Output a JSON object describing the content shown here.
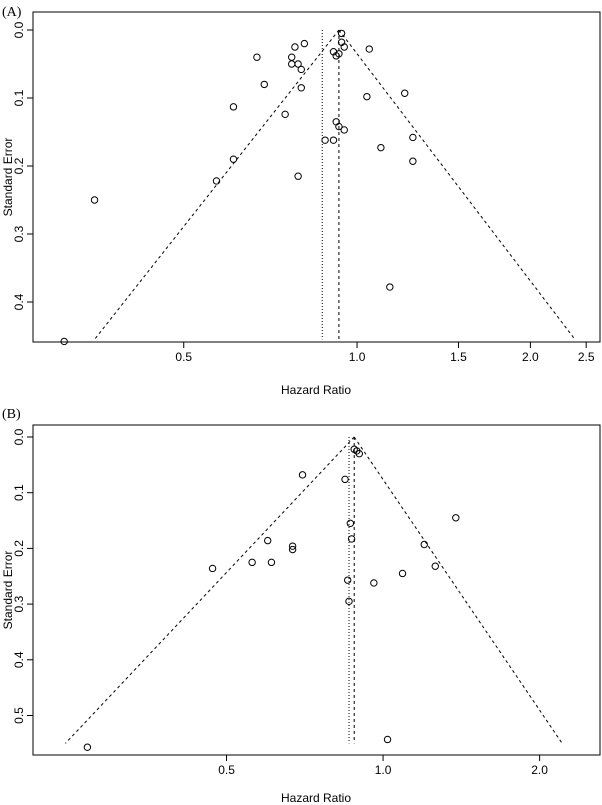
{
  "chart_data": [
    {
      "type": "scatter",
      "panel_label": "(A)",
      "xlabel": "Hazard Ratio",
      "ylabel": "Standard Error",
      "x_ticks": [
        "0.5",
        "1.0",
        "1.5",
        "2.0",
        "2.5"
      ],
      "y_ticks": [
        "0.0",
        "0.1",
        "0.2",
        "0.3",
        "0.4"
      ],
      "ylim": [
        0,
        0.46
      ],
      "pooled_x": 0.93,
      "dotted_x": 0.87,
      "funnel_base_se": 0.455,
      "points": [
        {
          "x": 0.31,
          "y": 0.458
        },
        {
          "x": 0.35,
          "y": 0.25
        },
        {
          "x": 0.57,
          "y": 0.222
        },
        {
          "x": 0.61,
          "y": 0.19
        },
        {
          "x": 0.61,
          "y": 0.113
        },
        {
          "x": 0.67,
          "y": 0.04
        },
        {
          "x": 0.69,
          "y": 0.08
        },
        {
          "x": 0.75,
          "y": 0.124
        },
        {
          "x": 0.77,
          "y": 0.04
        },
        {
          "x": 0.77,
          "y": 0.05
        },
        {
          "x": 0.78,
          "y": 0.025
        },
        {
          "x": 0.79,
          "y": 0.05
        },
        {
          "x": 0.8,
          "y": 0.058
        },
        {
          "x": 0.8,
          "y": 0.085
        },
        {
          "x": 0.79,
          "y": 0.215
        },
        {
          "x": 0.81,
          "y": 0.02
        },
        {
          "x": 0.88,
          "y": 0.162
        },
        {
          "x": 0.91,
          "y": 0.032
        },
        {
          "x": 0.92,
          "y": 0.038
        },
        {
          "x": 0.93,
          "y": 0.035
        },
        {
          "x": 0.94,
          "y": 0.005
        },
        {
          "x": 0.94,
          "y": 0.018
        },
        {
          "x": 0.95,
          "y": 0.025
        },
        {
          "x": 0.92,
          "y": 0.135
        },
        {
          "x": 0.93,
          "y": 0.142
        },
        {
          "x": 0.95,
          "y": 0.147
        },
        {
          "x": 0.91,
          "y": 0.162
        },
        {
          "x": 1.05,
          "y": 0.028
        },
        {
          "x": 1.04,
          "y": 0.098
        },
        {
          "x": 1.1,
          "y": 0.173
        },
        {
          "x": 1.14,
          "y": 0.378
        },
        {
          "x": 1.21,
          "y": 0.093
        },
        {
          "x": 1.25,
          "y": 0.158
        },
        {
          "x": 1.25,
          "y": 0.193
        }
      ]
    },
    {
      "type": "scatter",
      "panel_label": "(B)",
      "xlabel": "Hazard Ratio",
      "ylabel": "Standard Error",
      "x_ticks": [
        "0.5",
        "1.0",
        "2.0"
      ],
      "y_ticks": [
        "0.0",
        "0.1",
        "0.2",
        "0.3",
        "0.4",
        "0.5"
      ],
      "ylim": [
        0,
        0.56
      ],
      "pooled_x": 0.88,
      "dotted_x": 0.86,
      "funnel_base_se": 0.55,
      "points": [
        {
          "x": 0.27,
          "y": 0.557
        },
        {
          "x": 0.47,
          "y": 0.236
        },
        {
          "x": 0.56,
          "y": 0.225
        },
        {
          "x": 0.6,
          "y": 0.186
        },
        {
          "x": 0.61,
          "y": 0.225
        },
        {
          "x": 0.67,
          "y": 0.202
        },
        {
          "x": 0.67,
          "y": 0.196
        },
        {
          "x": 0.7,
          "y": 0.068
        },
        {
          "x": 0.845,
          "y": 0.076
        },
        {
          "x": 0.855,
          "y": 0.257
        },
        {
          "x": 0.86,
          "y": 0.295
        },
        {
          "x": 0.865,
          "y": 0.155
        },
        {
          "x": 0.87,
          "y": 0.183
        },
        {
          "x": 0.88,
          "y": 0.022
        },
        {
          "x": 0.89,
          "y": 0.025
        },
        {
          "x": 0.9,
          "y": 0.03
        },
        {
          "x": 0.96,
          "y": 0.262
        },
        {
          "x": 1.02,
          "y": 0.543
        },
        {
          "x": 1.09,
          "y": 0.245
        },
        {
          "x": 1.2,
          "y": 0.193
        },
        {
          "x": 1.26,
          "y": 0.232
        },
        {
          "x": 1.38,
          "y": 0.145
        }
      ]
    }
  ]
}
